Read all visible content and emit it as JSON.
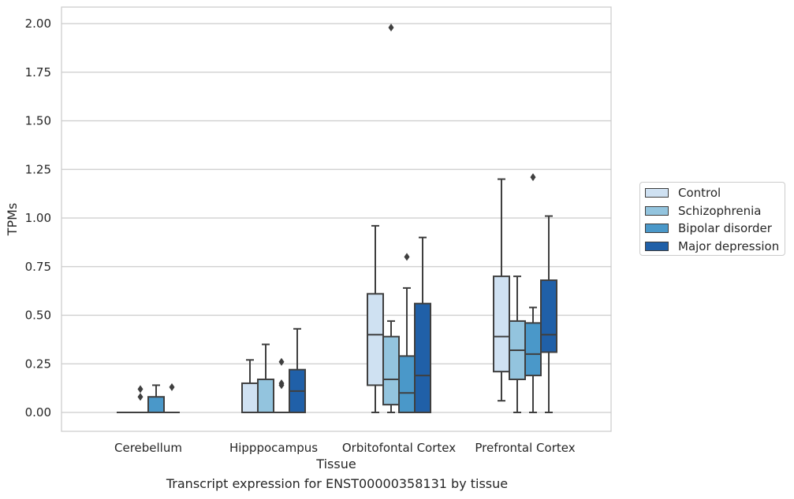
{
  "chart_data": {
    "type": "boxplot",
    "caption": "Transcript expression for ENST00000358131 by tissue",
    "xlabel": "Tissue",
    "ylabel": "TPMs",
    "ylim": [
      -0.1,
      2.08
    ],
    "yticks": [
      "0.00",
      "0.25",
      "0.50",
      "0.75",
      "1.00",
      "1.25",
      "1.50",
      "1.75",
      "2.00"
    ],
    "ytick_values": [
      0,
      0.25,
      0.5,
      0.75,
      1.0,
      1.25,
      1.5,
      1.75,
      2.0
    ],
    "grid": "horizontal",
    "legend_position": "right",
    "categories": [
      "Cerebellum",
      "Hipppocampus",
      "Orbitofontal Cortex",
      "Prefrontal Cortex"
    ],
    "series": [
      {
        "name": "Control",
        "color": "#cfe1f2",
        "boxes": [
          {
            "whisker_low": 0,
            "q1": 0,
            "median": 0,
            "q3": 0,
            "whisker_high": 0,
            "outliers": []
          },
          {
            "whisker_low": 0,
            "q1": 0,
            "median": 0,
            "q3": 0.15,
            "whisker_high": 0.27,
            "outliers": []
          },
          {
            "whisker_low": 0,
            "q1": 0.14,
            "median": 0.4,
            "q3": 0.61,
            "whisker_high": 0.96,
            "outliers": []
          },
          {
            "whisker_low": 0.06,
            "q1": 0.21,
            "median": 0.39,
            "q3": 0.7,
            "whisker_high": 1.2,
            "outliers": []
          }
        ]
      },
      {
        "name": "Schizophrenia",
        "color": "#93c4de",
        "boxes": [
          {
            "whisker_low": 0,
            "q1": 0,
            "median": 0,
            "q3": 0,
            "whisker_high": 0,
            "outliers": [
              0.08,
              0.12
            ]
          },
          {
            "whisker_low": 0,
            "q1": 0,
            "median": 0,
            "q3": 0.17,
            "whisker_high": 0.35,
            "outliers": []
          },
          {
            "whisker_low": 0,
            "q1": 0.04,
            "median": 0.17,
            "q3": 0.39,
            "whisker_high": 0.47,
            "outliers": [
              1.98
            ]
          },
          {
            "whisker_low": 0,
            "q1": 0.17,
            "median": 0.32,
            "q3": 0.47,
            "whisker_high": 0.7,
            "outliers": []
          }
        ]
      },
      {
        "name": "Bipolar disorder",
        "color": "#4a98c9",
        "boxes": [
          {
            "whisker_low": 0,
            "q1": 0,
            "median": 0,
            "q3": 0.08,
            "whisker_high": 0.14,
            "outliers": []
          },
          {
            "whisker_low": 0,
            "q1": 0,
            "median": 0,
            "q3": 0,
            "whisker_high": 0,
            "outliers": [
              0.14,
              0.15,
              0.26
            ]
          },
          {
            "whisker_low": 0,
            "q1": 0,
            "median": 0.1,
            "q3": 0.29,
            "whisker_high": 0.64,
            "outliers": [
              0.8
            ]
          },
          {
            "whisker_low": 0,
            "q1": 0.19,
            "median": 0.3,
            "q3": 0.46,
            "whisker_high": 0.54,
            "outliers": [
              1.21
            ]
          }
        ]
      },
      {
        "name": "Major depression",
        "color": "#2060a8",
        "boxes": [
          {
            "whisker_low": 0,
            "q1": 0,
            "median": 0,
            "q3": 0,
            "whisker_high": 0,
            "outliers": [
              0.13
            ]
          },
          {
            "whisker_low": 0,
            "q1": 0,
            "median": 0.11,
            "q3": 0.22,
            "whisker_high": 0.43,
            "outliers": []
          },
          {
            "whisker_low": 0,
            "q1": 0,
            "median": 0.19,
            "q3": 0.56,
            "whisker_high": 0.9,
            "outliers": []
          },
          {
            "whisker_low": 0,
            "q1": 0.31,
            "median": 0.4,
            "q3": 0.68,
            "whisker_high": 1.01,
            "outliers": []
          }
        ]
      }
    ]
  }
}
